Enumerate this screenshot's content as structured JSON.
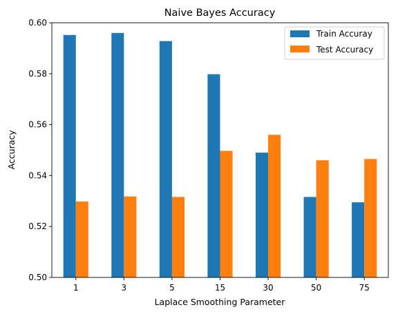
{
  "chart_data": {
    "type": "bar",
    "title": "Naive Bayes Accuracy",
    "xlabel": "Laplace Smoothing Parameter",
    "ylabel": "Accuracy",
    "categories": [
      "1",
      "3",
      "5",
      "15",
      "30",
      "50",
      "75"
    ],
    "series": [
      {
        "name": "Train Accuray",
        "color": "#1f77b4",
        "values": [
          0.5952,
          0.596,
          0.5928,
          0.5798,
          0.549,
          0.5316,
          0.5295
        ]
      },
      {
        "name": "Test Accuracy",
        "color": "#ff7f0e",
        "values": [
          0.5298,
          0.5318,
          0.5316,
          0.5497,
          0.556,
          0.546,
          0.5465
        ]
      }
    ],
    "ylim": [
      0.5,
      0.6
    ],
    "yticks": [
      "0.50",
      "0.52",
      "0.54",
      "0.56",
      "0.58",
      "0.60"
    ],
    "grid": false,
    "legend_position": "top-right"
  }
}
